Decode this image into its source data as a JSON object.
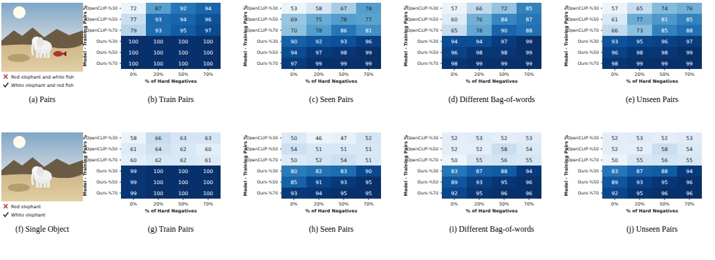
{
  "chart_data": [
    {
      "type": "heatmap",
      "title": "(b) Train Pairs",
      "x_label": "% of Hard Negatives",
      "y_label": "Model - Training Pairs %",
      "x_categories": [
        "0%",
        "20%",
        "50%",
        "70%"
      ],
      "y_categories": [
        "OpenCLIP-%30",
        "OpenCLIP-%50",
        "OpenCLIP-%70",
        "Ours-%30",
        "Ours-%50",
        "Ours-%70"
      ],
      "cells": [
        [
          72,
          87,
          92,
          94
        ],
        [
          77,
          93,
          94,
          96
        ],
        [
          79,
          93,
          95,
          97
        ],
        [
          100,
          100,
          100,
          100
        ],
        [
          100,
          100,
          100,
          100
        ],
        [
          100,
          100,
          100,
          100
        ]
      ],
      "data_labels": true
    },
    {
      "type": "heatmap",
      "title": "(c) Seen Pairs",
      "x_label": "% of Hard Negatives",
      "y_label": "Model - Training Pairs %",
      "x_categories": [
        "0%",
        "20%",
        "50%",
        "70%"
      ],
      "y_categories": [
        "OpenCLIP-%30",
        "OpenCLIP-%50",
        "OpenCLIP-%70",
        "Ours-%30",
        "Ours-%50",
        "Ours-%70"
      ],
      "cells": [
        [
          53,
          58,
          67,
          78
        ],
        [
          69,
          75,
          78,
          77
        ],
        [
          70,
          78,
          86,
          81
        ],
        [
          90,
          92,
          93,
          96
        ],
        [
          94,
          97,
          98,
          99
        ],
        [
          97,
          99,
          99,
          99
        ]
      ],
      "data_labels": true
    },
    {
      "type": "heatmap",
      "title": "(d) Different Bag-of-words",
      "x_label": "% of Hard Negatives",
      "y_label": "Model - Training Pairs %",
      "x_categories": [
        "0%",
        "20%",
        "50%",
        "70%"
      ],
      "y_categories": [
        "OpenCLIP-%30",
        "OpenCLIP-%50",
        "OpenCLIP-%70",
        "Ours-%30",
        "Ours-%50",
        "Ours-%70"
      ],
      "cells": [
        [
          57,
          66,
          72,
          85
        ],
        [
          60,
          76,
          84,
          87
        ],
        [
          65,
          78,
          90,
          88
        ],
        [
          94,
          94,
          97,
          99
        ],
        [
          96,
          98,
          98,
          99
        ],
        [
          98,
          99,
          99,
          99
        ]
      ],
      "data_labels": true
    },
    {
      "type": "heatmap",
      "title": "(e) Unseen Pairs",
      "x_label": "% of Hard Negatives",
      "y_label": "Model - Training Pairs %",
      "x_categories": [
        "0%",
        "20%",
        "50%",
        "70%"
      ],
      "y_categories": [
        "OpenCLIP-%30",
        "OpenCLIP-%50",
        "OpenCLIP-%70",
        "Ours-%30",
        "Ours-%50",
        "Ours-%70"
      ],
      "cells": [
        [
          57,
          65,
          74,
          76
        ],
        [
          61,
          77,
          81,
          85
        ],
        [
          66,
          73,
          85,
          88
        ],
        [
          93,
          95,
          96,
          97
        ],
        [
          96,
          98,
          98,
          99
        ],
        [
          98,
          99,
          99,
          99
        ]
      ],
      "data_labels": true
    },
    {
      "type": "heatmap",
      "title": "(g) Train Pairs",
      "x_label": "% of Hard Negatives",
      "y_label": "Model - Training Pairs %",
      "x_categories": [
        "0%",
        "20%",
        "50%",
        "70%"
      ],
      "y_categories": [
        "OpenCLIP-%30",
        "OpenCLIP-%50",
        "OpenCLIP-%70",
        "Ours-%30",
        "Ours-%50",
        "Ours-%70"
      ],
      "cells": [
        [
          58,
          66,
          63,
          63
        ],
        [
          61,
          64,
          62,
          60
        ],
        [
          60,
          62,
          62,
          61
        ],
        [
          99,
          100,
          100,
          100
        ],
        [
          99,
          100,
          100,
          100
        ],
        [
          99,
          100,
          100,
          100
        ]
      ],
      "data_labels": true
    },
    {
      "type": "heatmap",
      "title": "(h) Seen Pairs",
      "x_label": "% of Hard Negatives",
      "y_label": "Model - Training Pairs %",
      "x_categories": [
        "0%",
        "20%",
        "50%",
        "70%"
      ],
      "y_categories": [
        "OpenCLIP-%30",
        "OpenCLIP-%50",
        "OpenCLIP-%70",
        "Ours-%30",
        "Ours-%50",
        "Ours-%70"
      ],
      "cells": [
        [
          50,
          46,
          47,
          52
        ],
        [
          54,
          51,
          51,
          51
        ],
        [
          50,
          52,
          54,
          51
        ],
        [
          80,
          82,
          83,
          90
        ],
        [
          85,
          91,
          93,
          95
        ],
        [
          93,
          94,
          95,
          95
        ]
      ],
      "data_labels": true
    },
    {
      "type": "heatmap",
      "title": "(i) Different Bag-of-words",
      "x_label": "% of Hard Negatives",
      "y_label": "Model - Training Pairs %",
      "x_categories": [
        "0%",
        "20%",
        "50%",
        "70%"
      ],
      "y_categories": [
        "OpenCLIP-%30",
        "OpenCLIP-%50",
        "OpenCLIP-%70",
        "Ours-%30",
        "Ours-%50",
        "Ours-%70"
      ],
      "cells": [
        [
          52,
          53,
          52,
          53
        ],
        [
          52,
          52,
          58,
          54
        ],
        [
          50,
          55,
          56,
          55
        ],
        [
          83,
          87,
          88,
          94
        ],
        [
          89,
          93,
          95,
          96
        ],
        [
          92,
          95,
          96,
          96
        ]
      ],
      "data_labels": true
    },
    {
      "type": "heatmap",
      "title": "(j) Unseen Pairs",
      "x_label": "% of Hard Negatives",
      "y_label": "Model - Training Pairs %",
      "x_categories": [
        "0%",
        "20%",
        "50%",
        "70%"
      ],
      "y_categories": [
        "OpenCLIP-%30",
        "OpenCLIP-%50",
        "OpenCLIP-%70",
        "Ours-%30",
        "Ours-%50",
        "Ours-%70"
      ],
      "cells": [
        [
          52,
          53,
          52,
          53
        ],
        [
          52,
          52,
          58,
          54
        ],
        [
          50,
          55,
          56,
          55
        ],
        [
          83,
          87,
          88,
          94
        ],
        [
          89,
          93,
          95,
          96
        ],
        [
          92,
          95,
          96,
          96
        ]
      ],
      "data_labels": true
    }
  ],
  "image_panels": [
    {
      "caption": "(a) Pairs",
      "options": [
        {
          "text": "Red elephant and white fish",
          "correct": false
        },
        {
          "text": "White elephant and red fish",
          "correct": true
        }
      ]
    },
    {
      "caption": "(f) Single Object",
      "options": [
        {
          "text": "Red elephant",
          "correct": false
        },
        {
          "text": "White elephant",
          "correct": true
        }
      ]
    }
  ]
}
